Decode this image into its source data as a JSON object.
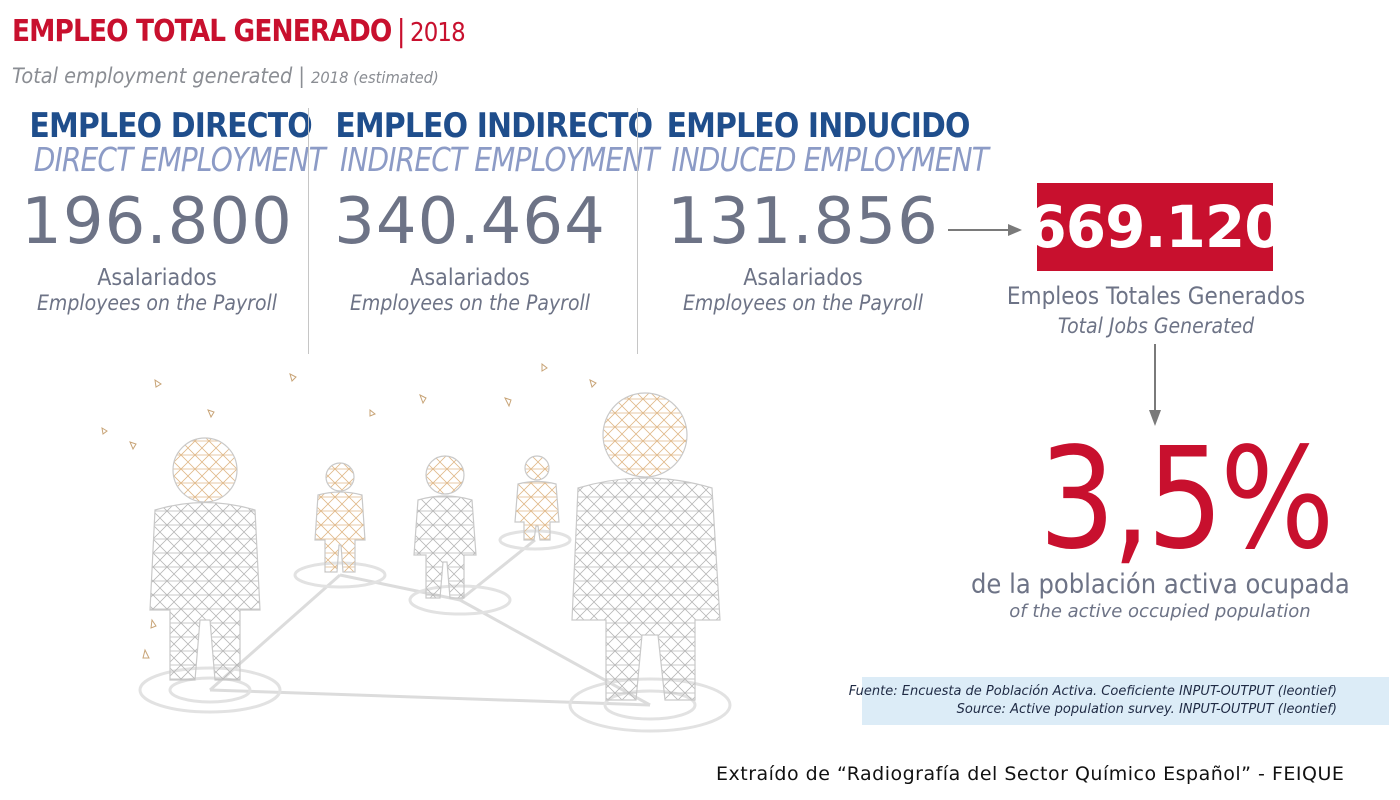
{
  "header": {
    "title": "EMPLEO TOTAL GENERADO",
    "title_sep": "|",
    "title_year": "2018",
    "subtitle": "Total employment generated",
    "subtitle_sep": "|",
    "subtitle_year": "2018 (estimated)"
  },
  "columns": [
    {
      "es": "EMPLEO DIRECTO",
      "en": "DIRECT EMPLOYMENT",
      "value": "196.800",
      "label_es": "Asalariados",
      "label_en": "Employees on the Payroll"
    },
    {
      "es": "EMPLEO INDIRECTO",
      "en": "INDIRECT EMPLOYMENT",
      "value": "340.464",
      "label_es": "Asalariados",
      "label_en": "Employees on the Payroll"
    },
    {
      "es": "EMPLEO INDUCIDO",
      "en": "INDUCED EMPLOYMENT",
      "value": "131.856",
      "label_es": "Asalariados",
      "label_en": "Employees on the Payroll"
    }
  ],
  "total": {
    "value": "669.120",
    "label_es": "Empleos Totales Generados",
    "label_en": "Total Jobs Generated"
  },
  "share": {
    "value": "3,5%",
    "label_es": "de la población activa ocupada",
    "label_en": "of the active occupied population"
  },
  "source": {
    "line1": "Fuente: Encuesta de Población Activa. Coeficiente INPUT-OUTPUT (leontief)",
    "line2": "Source: Active population survey. INPUT-OUTPUT (leontief)"
  },
  "credit": "Extraído de “Radiografía del Sector Químico Español” - FEIQUE",
  "colors": {
    "accent": "#c8102e",
    "navy": "#1f4e8c",
    "light_blue": "#8c9bc6",
    "gray": "#6d7386",
    "source_bg": "#dcecf7"
  },
  "icons": [
    "arrow-right-icon",
    "arrow-down-icon",
    "network-people-illustration"
  ]
}
